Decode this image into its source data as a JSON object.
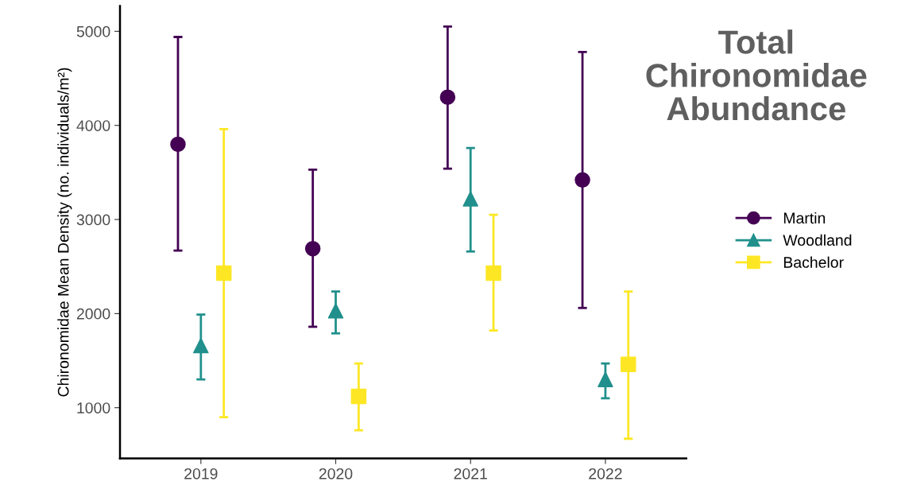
{
  "chart_data": {
    "type": "scatter",
    "title": "Total\nChironomidae\nAbundance",
    "ylabel": "Chironomidae Mean Density (no. individuals/m²)",
    "categories": [
      "2019",
      "2020",
      "2021",
      "2022"
    ],
    "series": [
      {
        "name": "Martin",
        "color": "#440154",
        "marker": "circle",
        "values": [
          3800,
          2690,
          4300,
          3420
        ],
        "errors": [
          [
            2670,
            4940
          ],
          [
            1860,
            3530
          ],
          [
            3540,
            5050
          ],
          [
            2060,
            4780
          ]
        ]
      },
      {
        "name": "Woodland",
        "color": "#21908c",
        "marker": "triangle",
        "values": [
          1660,
          2030,
          3220,
          1300
        ],
        "errors": [
          [
            1300,
            1990
          ],
          [
            1790,
            2235
          ],
          [
            2660,
            3760
          ],
          [
            1100,
            1470
          ]
        ]
      },
      {
        "name": "Bachelor",
        "color": "#fde725",
        "marker": "square",
        "values": [
          2430,
          1120,
          2430,
          1460
        ],
        "errors": [
          [
            900,
            3960
          ],
          [
            760,
            1470
          ],
          [
            1820,
            3050
          ],
          [
            670,
            2235
          ]
        ]
      }
    ],
    "ylim": [
      460,
      5270
    ],
    "yticks": [
      1000,
      2000,
      3000,
      4000,
      5000
    ],
    "grid": false,
    "legend": "right"
  }
}
